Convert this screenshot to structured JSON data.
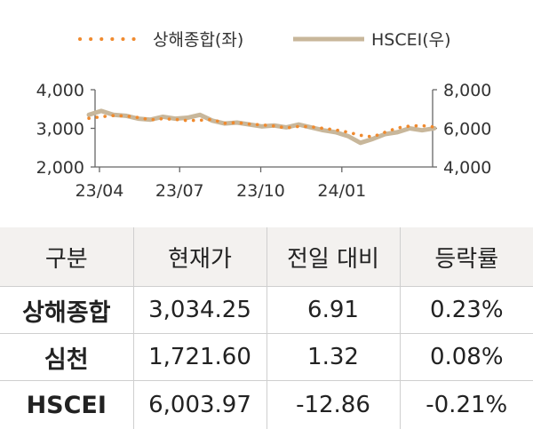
{
  "chart_data": {
    "type": "line",
    "legend_position": "top",
    "x_ticks": [
      "23/04",
      "23/07",
      "23/10",
      "24/01"
    ],
    "y_left": {
      "ticks": [
        "2,000",
        "3,000",
        "4,000"
      ],
      "range": [
        2000,
        4000
      ]
    },
    "y_right": {
      "ticks": [
        "4,000",
        "6,000",
        "8,000"
      ],
      "range": [
        4000,
        8000
      ]
    },
    "grid": false,
    "series": [
      {
        "name": "상해종합(좌)",
        "axis": "left",
        "style": "dotted",
        "color": "#f08a2e",
        "x": [
          "2023-03-20",
          "2023-04-03",
          "2023-04-17",
          "2023-05-01",
          "2023-05-15",
          "2023-05-29",
          "2023-06-12",
          "2023-06-26",
          "2023-07-10",
          "2023-07-24",
          "2023-08-07",
          "2023-08-21",
          "2023-09-04",
          "2023-09-18",
          "2023-10-02",
          "2023-10-16",
          "2023-10-30",
          "2023-11-13",
          "2023-11-27",
          "2023-12-11",
          "2023-12-25",
          "2024-01-08",
          "2024-01-22",
          "2024-02-05",
          "2024-02-19",
          "2024-03-04",
          "2024-03-18",
          "2024-04-01",
          "2024-04-15"
        ],
        "values": [
          3260,
          3300,
          3330,
          3320,
          3280,
          3220,
          3250,
          3230,
          3200,
          3210,
          3230,
          3130,
          3150,
          3110,
          3090,
          3060,
          3010,
          3050,
          3040,
          3000,
          2960,
          2900,
          2820,
          2780,
          2900,
          3010,
          3060,
          3070,
          3034.25
        ]
      },
      {
        "name": "HSCEI(우)",
        "axis": "right",
        "style": "solid",
        "color": "#c8b79b",
        "x": [
          "2023-03-20",
          "2023-04-03",
          "2023-04-17",
          "2023-05-01",
          "2023-05-15",
          "2023-05-29",
          "2023-06-12",
          "2023-06-26",
          "2023-07-10",
          "2023-07-24",
          "2023-08-07",
          "2023-08-21",
          "2023-09-04",
          "2023-09-18",
          "2023-10-02",
          "2023-10-16",
          "2023-10-30",
          "2023-11-13",
          "2023-11-27",
          "2023-12-11",
          "2023-12-25",
          "2024-01-08",
          "2024-01-22",
          "2024-02-05",
          "2024-02-19",
          "2024-03-04",
          "2024-03-18",
          "2024-04-01",
          "2024-04-15"
        ],
        "values": [
          6700,
          6900,
          6700,
          6650,
          6500,
          6450,
          6600,
          6500,
          6550,
          6700,
          6400,
          6250,
          6300,
          6200,
          6100,
          6150,
          6050,
          6200,
          6050,
          5900,
          5800,
          5600,
          5250,
          5450,
          5700,
          5800,
          6000,
          5900,
          6003.97
        ]
      }
    ]
  },
  "table": {
    "headers": [
      "구분",
      "현재가",
      "전일 대비",
      "등락률"
    ],
    "rows": [
      [
        "상해종합",
        "3,034.25",
        "6.91",
        "0.23%"
      ],
      [
        "심천",
        "1,721.60",
        "1.32",
        "0.08%"
      ],
      [
        "HSCEI",
        "6,003.97",
        "-12.86",
        "-0.21%"
      ]
    ]
  }
}
